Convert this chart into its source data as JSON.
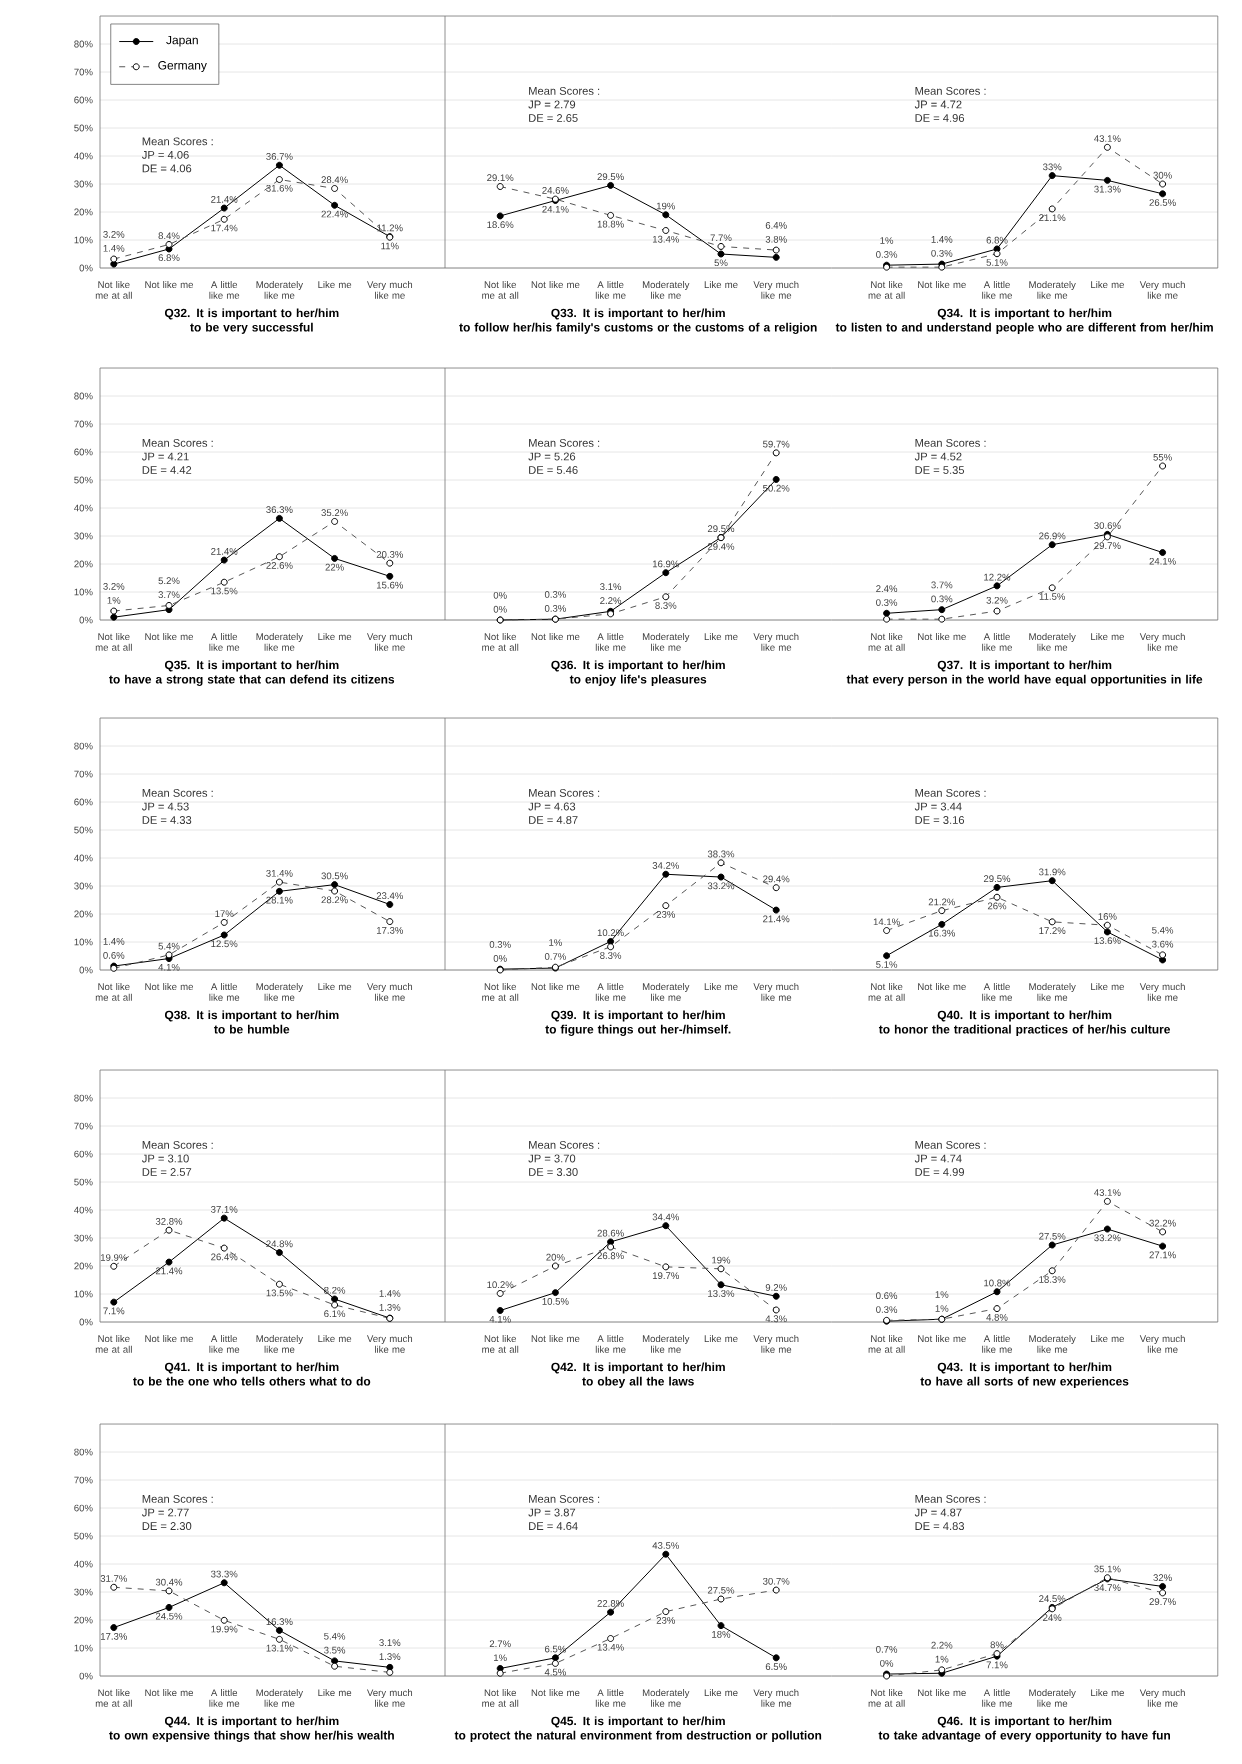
{
  "chart_data": [
    {
      "type": "line",
      "title": "Q32. It is important to her/him",
      "subtitle": "to be very successful",
      "categories": [
        "Not like me at all",
        "Not like me",
        "A little like me",
        "Moderately like me",
        "Like me",
        "Very much like me"
      ],
      "ylim": [
        0,
        90
      ],
      "yticks": [
        {
          "value": 0,
          "label": "0%"
        },
        {
          "value": 10,
          "label": "10%"
        },
        {
          "value": 20,
          "label": "20%"
        },
        {
          "value": 30,
          "label": "30%"
        },
        {
          "value": 40,
          "label": "40%"
        },
        {
          "value": 50,
          "label": "50%"
        },
        {
          "value": 60,
          "label": "60%"
        },
        {
          "value": 70,
          "label": "70%"
        },
        {
          "value": 80,
          "label": "80%"
        }
      ],
      "grid": "y",
      "marker": "circle",
      "legend": "top left",
      "annotations": [
        "Mean Scores :",
        "JP = 4.06",
        "DE = 4.06"
      ],
      "series": [
        {
          "name": "Japan",
          "color": "#000000",
          "line_style": "solid",
          "values": [
            1.4,
            6.8,
            21.4,
            36.7,
            22.4,
            11.2
          ],
          "value_labels": [
            "1.4%",
            "6.8%",
            "21.4%",
            "36.7%",
            "22.4%",
            "11.2%"
          ]
        },
        {
          "name": "Germany",
          "color": "#555555",
          "line_style": "dashed",
          "values": [
            3.2,
            8.4,
            17.4,
            31.6,
            28.4,
            11
          ],
          "value_labels": [
            "3.2%",
            "8.4%",
            "17.4%",
            "31.6%",
            "28.4%",
            "11%"
          ]
        }
      ]
    },
    {
      "type": "line",
      "title": "Q33. It is important to her/him",
      "subtitle": "to follow her/his family's customs or the customs of a religion",
      "categories": [
        "Not like me at all",
        "Not like me",
        "A little like me",
        "Moderately like me",
        "Like me",
        "Very much like me"
      ],
      "ylim": [
        0,
        90
      ],
      "yticks": [
        0,
        10,
        20,
        30,
        40,
        50,
        60,
        70,
        80
      ],
      "grid": "y",
      "marker": "circle",
      "tick_labels": "x",
      "annotations": [
        "Mean Scores :",
        "JP = 2.79",
        "DE = 2.65"
      ],
      "series": [
        {
          "color": "#000000",
          "line_style": "solid",
          "values": [
            18.6,
            24.1,
            29.5,
            19,
            5,
            3.8
          ],
          "value_labels": [
            "18.6%",
            "24.1%",
            "29.5%",
            "19%",
            "5%",
            "3.8%"
          ]
        },
        {
          "color": "#555555",
          "line_style": "dashed",
          "values": [
            29.1,
            24.6,
            18.8,
            13.4,
            7.7,
            6.4
          ],
          "value_labels": [
            "29.1%",
            "24.6%",
            "18.8%",
            "13.4%",
            "7.7%",
            "6.4%"
          ]
        }
      ]
    },
    {
      "type": "line",
      "title": "Q34. It is important to her/him",
      "subtitle": "to listen to and understand people who are different from her/him",
      "categories": [
        "Not like me at all",
        "Not like me",
        "A little like me",
        "Moderately like me",
        "Like me",
        "Very much like me"
      ],
      "ylim": [
        0,
        90
      ],
      "yticks": [
        0,
        10,
        20,
        30,
        40,
        50,
        60,
        70,
        80
      ],
      "grid": "y",
      "marker": "circle",
      "tick_labels": "x",
      "annotations": [
        "Mean Scores :",
        "JP = 4.72",
        "DE = 4.96"
      ],
      "series": [
        {
          "color": "#000000",
          "line_style": "solid",
          "values": [
            1,
            1.4,
            6.8,
            33,
            31.3,
            26.5
          ],
          "value_labels": [
            "1%",
            "1.4%",
            "6.8%",
            "33%",
            "31.3%",
            "26.5%"
          ]
        },
        {
          "color": "#555555",
          "line_style": "dashed",
          "values": [
            0.3,
            0.3,
            5.1,
            21.1,
            43.1,
            30
          ],
          "value_labels": [
            "0.3%",
            "0.3%",
            "5.1%",
            "21.1%",
            "43.1%",
            "30%"
          ]
        }
      ]
    },
    {
      "type": "line",
      "title": "Q35. It is important to her/him",
      "subtitle": "to have a strong state that can defend its citizens",
      "categories": [
        "Not like me at all",
        "Not like me",
        "A little like me",
        "Moderately like me",
        "Like me",
        "Very much like me"
      ],
      "ylim": [
        0,
        90
      ],
      "yticks": [
        {
          "value": 0,
          "label": "0%"
        },
        {
          "value": 10,
          "label": "10%"
        },
        {
          "value": 20,
          "label": "20%"
        },
        {
          "value": 30,
          "label": "30%"
        },
        {
          "value": 40,
          "label": "40%"
        },
        {
          "value": 50,
          "label": "50%"
        },
        {
          "value": 60,
          "label": "60%"
        },
        {
          "value": 70,
          "label": "70%"
        },
        {
          "value": 80,
          "label": "80%"
        }
      ],
      "grid": "y",
      "marker": "circle",
      "annotations": [
        "Mean Scores :",
        "JP = 4.21",
        "DE = 4.42"
      ],
      "series": [
        {
          "color": "#000000",
          "line_style": "solid",
          "values": [
            1,
            3.7,
            21.4,
            36.3,
            22,
            15.6
          ],
          "value_labels": [
            "1%",
            "3.7%",
            "21.4%",
            "36.3%",
            "22%",
            "15.6%"
          ]
        },
        {
          "color": "#555555",
          "line_style": "dashed",
          "values": [
            3.2,
            5.2,
            13.5,
            22.6,
            35.2,
            20.3
          ],
          "value_labels": [
            "3.2%",
            "5.2%",
            "13.5%",
            "22.6%",
            "35.2%",
            "20.3%"
          ]
        }
      ]
    },
    {
      "type": "line",
      "title": "Q36. It is important to her/him",
      "subtitle": "to enjoy life's pleasures",
      "categories": [
        "Not like me at all",
        "Not like me",
        "A little like me",
        "Moderately like me",
        "Like me",
        "Very much like me"
      ],
      "ylim": [
        0,
        90
      ],
      "yticks": [
        0,
        10,
        20,
        30,
        40,
        50,
        60,
        70,
        80
      ],
      "grid": "y",
      "marker": "circle",
      "tick_labels": "x",
      "annotations": [
        "Mean Scores :",
        "JP = 5.26",
        "DE = 5.46"
      ],
      "series": [
        {
          "color": "#000000",
          "line_style": "solid",
          "values": [
            0,
            0.3,
            3.1,
            16.9,
            29.5,
            50.2
          ],
          "value_labels": [
            "0%",
            "0.3%",
            "3.1%",
            "16.9%",
            "29.5%",
            "50.2%"
          ]
        },
        {
          "color": "#555555",
          "line_style": "dashed",
          "values": [
            0,
            0.3,
            2.2,
            8.3,
            29.4,
            59.7
          ],
          "value_labels": [
            "0%",
            "0.3%",
            "2.2%",
            "8.3%",
            "29.4%",
            "59.7%"
          ]
        }
      ]
    },
    {
      "type": "line",
      "title": "Q37. It is important to her/him",
      "subtitle": "that every person in the world have equal opportunities in life",
      "categories": [
        "Not like me at all",
        "Not like me",
        "A little like me",
        "Moderately like me",
        "Like me",
        "Very much like me"
      ],
      "ylim": [
        0,
        90
      ],
      "yticks": [
        0,
        10,
        20,
        30,
        40,
        50,
        60,
        70,
        80
      ],
      "grid": "y",
      "marker": "circle",
      "tick_labels": "x",
      "annotations": [
        "Mean Scores :",
        "JP = 4.52",
        "DE = 5.35"
      ],
      "series": [
        {
          "color": "#000000",
          "line_style": "solid",
          "values": [
            2.4,
            3.7,
            12.2,
            26.9,
            30.6,
            24.1
          ],
          "value_labels": [
            "2.4%",
            "3.7%",
            "12.2%",
            "26.9%",
            "30.6%",
            "24.1%"
          ]
        },
        {
          "color": "#555555",
          "line_style": "dashed",
          "values": [
            0.3,
            0.3,
            3.2,
            11.5,
            29.7,
            55
          ],
          "value_labels": [
            "0.3%",
            "0.3%",
            "3.2%",
            "11.5%",
            "29.7%",
            "55%"
          ]
        }
      ]
    },
    {
      "type": "line",
      "title": "Q38. It is important to her/him",
      "subtitle": "to be humble",
      "categories": [
        "Not like me at all",
        "Not like me",
        "A little like me",
        "Moderately like me",
        "Like me",
        "Very much like me"
      ],
      "ylim": [
        0,
        90
      ],
      "yticks": [
        {
          "value": 0,
          "label": "0%"
        },
        {
          "value": 10,
          "label": "10%"
        },
        {
          "value": 20,
          "label": "20%"
        },
        {
          "value": 30,
          "label": "30%"
        },
        {
          "value": 40,
          "label": "40%"
        },
        {
          "value": 50,
          "label": "50%"
        },
        {
          "value": 60,
          "label": "60%"
        },
        {
          "value": 70,
          "label": "70%"
        },
        {
          "value": 80,
          "label": "80%"
        }
      ],
      "grid": "y",
      "marker": "circle",
      "annotations": [
        "Mean Scores :",
        "JP = 4.53",
        "DE = 4.33"
      ],
      "series": [
        {
          "color": "#000000",
          "line_style": "solid",
          "values": [
            1.4,
            4.1,
            12.5,
            28.1,
            30.5,
            23.4
          ],
          "value_labels": [
            "1.4%",
            "4.1%",
            "12.5%",
            "28.1%",
            "30.5%",
            "23.4%"
          ]
        },
        {
          "color": "#555555",
          "line_style": "dashed",
          "values": [
            0.6,
            5.4,
            17,
            31.4,
            28.2,
            17.3
          ],
          "value_labels": [
            "0.6%",
            "5.4%",
            "17%",
            "31.4%",
            "28.2%",
            "17.3%"
          ]
        }
      ]
    },
    {
      "type": "line",
      "title": "Q39. It is important to her/him",
      "subtitle": "to figure things out her-/himself.",
      "categories": [
        "Not like me at all",
        "Not like me",
        "A little like me",
        "Moderately like me",
        "Like me",
        "Very much like me"
      ],
      "ylim": [
        0,
        90
      ],
      "yticks": [
        0,
        10,
        20,
        30,
        40,
        50,
        60,
        70,
        80
      ],
      "grid": "y",
      "marker": "circle",
      "tick_labels": "x",
      "annotations": [
        "Mean Scores :",
        "JP = 4.63",
        "DE = 4.87"
      ],
      "series": [
        {
          "color": "#000000",
          "line_style": "solid",
          "values": [
            0.3,
            0.7,
            10.2,
            34.2,
            33.2,
            21.4
          ],
          "value_labels": [
            "0.3%",
            "0.7%",
            "10.2%",
            "34.2%",
            "33.2%",
            "21.4%"
          ]
        },
        {
          "color": "#555555",
          "line_style": "dashed",
          "values": [
            0,
            1,
            8.3,
            23,
            38.3,
            29.4
          ],
          "value_labels": [
            "0%",
            "1%",
            "8.3%",
            "23%",
            "38.3%",
            "29.4%"
          ]
        }
      ]
    },
    {
      "type": "line",
      "title": "Q40. It is important to her/him",
      "subtitle": "to honor the traditional practices of her/his culture",
      "categories": [
        "Not like me at all",
        "Not like me",
        "A little like me",
        "Moderately like me",
        "Like me",
        "Very much like me"
      ],
      "ylim": [
        0,
        90
      ],
      "yticks": [
        0,
        10,
        20,
        30,
        40,
        50,
        60,
        70,
        80
      ],
      "grid": "y",
      "marker": "circle",
      "tick_labels": "x",
      "annotations": [
        "Mean Scores :",
        "JP = 3.44",
        "DE = 3.16"
      ],
      "series": [
        {
          "color": "#000000",
          "line_style": "solid",
          "values": [
            5.1,
            16.3,
            29.5,
            31.9,
            13.6,
            3.6
          ],
          "value_labels": [
            "5.1%",
            "16.3%",
            "29.5%",
            "31.9%",
            "13.6%",
            "3.6%"
          ]
        },
        {
          "color": "#555555",
          "line_style": "dashed",
          "values": [
            14.1,
            21.2,
            26,
            17.2,
            16,
            5.4
          ],
          "value_labels": [
            "14.1%",
            "21.2%",
            "26%",
            "17.2%",
            "16%",
            "5.4%"
          ]
        }
      ]
    },
    {
      "type": "line",
      "title": "Q41. It is important to her/him",
      "subtitle": "to be the one who tells others what to do",
      "categories": [
        "Not like me at all",
        "Not like me",
        "A little like me",
        "Moderately like me",
        "Like me",
        "Very much like me"
      ],
      "ylim": [
        0,
        90
      ],
      "yticks": [
        {
          "value": 0,
          "label": "0%"
        },
        {
          "value": 10,
          "label": "10%"
        },
        {
          "value": 20,
          "label": "20%"
        },
        {
          "value": 30,
          "label": "30%"
        },
        {
          "value": 40,
          "label": "40%"
        },
        {
          "value": 50,
          "label": "50%"
        },
        {
          "value": 60,
          "label": "60%"
        },
        {
          "value": 70,
          "label": "70%"
        },
        {
          "value": 80,
          "label": "80%"
        }
      ],
      "grid": "y",
      "marker": "circle",
      "annotations": [
        "Mean Scores :",
        "JP = 3.10",
        "DE = 2.57"
      ],
      "series": [
        {
          "color": "#000000",
          "line_style": "solid",
          "values": [
            7.1,
            21.4,
            37.1,
            24.8,
            8.2,
            1.4
          ],
          "value_labels": [
            "7.1%",
            "21.4%",
            "37.1%",
            "24.8%",
            "8.2%",
            "1.4%"
          ]
        },
        {
          "color": "#555555",
          "line_style": "dashed",
          "values": [
            19.9,
            32.8,
            26.4,
            13.5,
            6.1,
            1.3
          ],
          "value_labels": [
            "19.9%",
            "32.8%",
            "26.4%",
            "13.5%",
            "6.1%",
            "1.3%"
          ]
        }
      ]
    },
    {
      "type": "line",
      "title": "Q42. It is important to her/him",
      "subtitle": "to obey all the laws",
      "categories": [
        "Not like me at all",
        "Not like me",
        "A little like me",
        "Moderately like me",
        "Like me",
        "Very much like me"
      ],
      "ylim": [
        0,
        90
      ],
      "yticks": [
        0,
        10,
        20,
        30,
        40,
        50,
        60,
        70,
        80
      ],
      "grid": "y",
      "marker": "circle",
      "tick_labels": "x",
      "annotations": [
        "Mean Scores :",
        "JP = 3.70",
        "DE = 3.30"
      ],
      "series": [
        {
          "color": "#000000",
          "line_style": "solid",
          "values": [
            4.1,
            10.5,
            28.6,
            34.4,
            13.3,
            9.2
          ],
          "value_labels": [
            "4.1%",
            "10.5%",
            "28.6%",
            "34.4%",
            "13.3%",
            "9.2%"
          ]
        },
        {
          "color": "#555555",
          "line_style": "dashed",
          "values": [
            10.2,
            20,
            26.8,
            19.7,
            19,
            4.3
          ],
          "value_labels": [
            "10.2%",
            "20%",
            "26.8%",
            "19.7%",
            "19%",
            "4.3%"
          ]
        }
      ]
    },
    {
      "type": "line",
      "title": "Q43. It is important to her/him",
      "subtitle": "to have all sorts of new experiences",
      "categories": [
        "Not like me at all",
        "Not like me",
        "A little like me",
        "Moderately like me",
        "Like me",
        "Very much like me"
      ],
      "ylim": [
        0,
        90
      ],
      "yticks": [
        0,
        10,
        20,
        30,
        40,
        50,
        60,
        70,
        80
      ],
      "grid": "y",
      "marker": "circle",
      "tick_labels": "x",
      "annotations": [
        "Mean Scores :",
        "JP = 4.74",
        "DE = 4.99"
      ],
      "series": [
        {
          "color": "#000000",
          "line_style": "solid",
          "values": [
            0.3,
            1,
            10.8,
            27.5,
            33.2,
            27.1
          ],
          "value_labels": [
            "0.3%",
            "1%",
            "10.8%",
            "27.5%",
            "33.2%",
            "27.1%"
          ]
        },
        {
          "color": "#555555",
          "line_style": "dashed",
          "values": [
            0.6,
            1,
            4.8,
            18.3,
            43.1,
            32.2
          ],
          "value_labels": [
            "0.6%",
            "1%",
            "4.8%",
            "18.3%",
            "43.1%",
            "32.2%"
          ]
        }
      ]
    },
    {
      "type": "line",
      "title": "Q44. It is important to her/him",
      "subtitle": "to own expensive things that show her/his wealth",
      "categories": [
        "Not like me at all",
        "Not like me",
        "A little like me",
        "Moderately like me",
        "Like me",
        "Very much like me"
      ],
      "ylim": [
        0,
        90
      ],
      "yticks": [
        {
          "value": 0,
          "label": "0%"
        },
        {
          "value": 10,
          "label": "10%"
        },
        {
          "value": 20,
          "label": "20%"
        },
        {
          "value": 30,
          "label": "30%"
        },
        {
          "value": 40,
          "label": "40%"
        },
        {
          "value": 50,
          "label": "50%"
        },
        {
          "value": 60,
          "label": "60%"
        },
        {
          "value": 70,
          "label": "70%"
        },
        {
          "value": 80,
          "label": "80%"
        }
      ],
      "grid": "y",
      "marker": "circle",
      "annotations": [
        "Mean Scores :",
        "JP = 2.77",
        "DE = 2.30"
      ],
      "series": [
        {
          "color": "#000000",
          "line_style": "solid",
          "values": [
            17.3,
            24.5,
            33.3,
            16.3,
            5.4,
            3.1
          ],
          "value_labels": [
            "17.3%",
            "24.5%",
            "33.3%",
            "16.3%",
            "5.4%",
            "3.1%"
          ]
        },
        {
          "color": "#555555",
          "line_style": "dashed",
          "values": [
            31.7,
            30.4,
            19.9,
            13.1,
            3.5,
            1.3
          ],
          "value_labels": [
            "31.7%",
            "30.4%",
            "19.9%",
            "13.1%",
            "3.5%",
            "1.3%"
          ]
        }
      ]
    },
    {
      "type": "line",
      "title": "Q45. It is important to her/him",
      "subtitle": "to protect the natural environment from destruction or pollution",
      "categories": [
        "Not like me at all",
        "Not like me",
        "A little like me",
        "Moderately like me",
        "Like me",
        "Very much like me"
      ],
      "ylim": [
        0,
        90
      ],
      "yticks": [
        0,
        10,
        20,
        30,
        40,
        50,
        60,
        70,
        80
      ],
      "grid": "y",
      "marker": "circle",
      "tick_labels": "x",
      "annotations": [
        "Mean Scores :",
        "JP = 3.87",
        "DE = 4.64"
      ],
      "series": [
        {
          "color": "#000000",
          "line_style": "solid",
          "values": [
            2.7,
            6.5,
            22.8,
            43.5,
            18,
            6.5
          ],
          "value_labels": [
            "2.7%",
            "6.5%",
            "22.8%",
            "43.5%",
            "18%",
            "6.5%"
          ]
        },
        {
          "color": "#555555",
          "line_style": "dashed",
          "values": [
            1,
            4.5,
            13.4,
            23,
            27.5,
            30.7
          ],
          "value_labels": [
            "1%",
            "4.5%",
            "13.4%",
            "23%",
            "27.5%",
            "30.7%"
          ]
        }
      ]
    },
    {
      "type": "line",
      "title": "Q46. It is important to her/him",
      "subtitle": "to take advantage of every opportunity to have fun",
      "categories": [
        "Not like me at all",
        "Not like me",
        "A little like me",
        "Moderately like me",
        "Like me",
        "Very much like me"
      ],
      "ylim": [
        0,
        90
      ],
      "yticks": [
        0,
        10,
        20,
        30,
        40,
        50,
        60,
        70,
        80
      ],
      "grid": "y",
      "marker": "circle",
      "tick_labels": "x",
      "annotations": [
        "Mean Scores :",
        "JP = 4.87",
        "DE = 4.83"
      ],
      "series": [
        {
          "color": "#000000",
          "line_style": "solid",
          "values": [
            0.7,
            1,
            7.1,
            24.5,
            34.7,
            32
          ],
          "value_labels": [
            "0.7%",
            "1%",
            "7.1%",
            "24.5%",
            "34.7%",
            "32%"
          ]
        },
        {
          "color": "#555555",
          "line_style": "dashed",
          "values": [
            0,
            2.2,
            8,
            24,
            35.1,
            29.7
          ],
          "value_labels": [
            "0%",
            "2.2%",
            "8%",
            "24%",
            "35.1%",
            "29.7%"
          ]
        }
      ]
    }
  ]
}
